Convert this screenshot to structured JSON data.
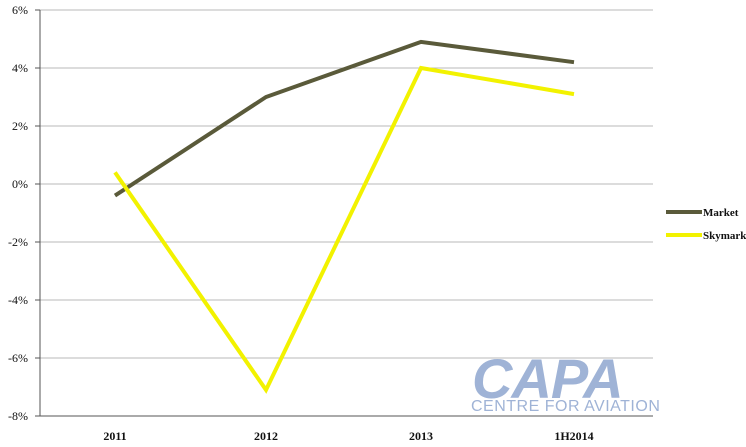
{
  "chart_data": {
    "type": "line",
    "categories": [
      "2011",
      "2012",
      "2013",
      "1H2014"
    ],
    "y_ticks": [
      "6%",
      "4%",
      "2%",
      "0%",
      "-2%",
      "-4%",
      "-6%",
      "-8%"
    ],
    "ylim": [
      -8,
      6
    ],
    "grid": true,
    "legend_position": "right",
    "series": [
      {
        "name": "Market",
        "color": "#5a5a3a",
        "values": [
          -0.4,
          3.0,
          4.9,
          4.2
        ]
      },
      {
        "name": "Skymark",
        "color": "#f2f200",
        "values": [
          0.4,
          -7.1,
          4.0,
          3.1
        ]
      }
    ]
  },
  "watermark": {
    "brand": "CAPA",
    "tagline": "CENTRE FOR AVIATION",
    "color": "#9fb3d6"
  }
}
